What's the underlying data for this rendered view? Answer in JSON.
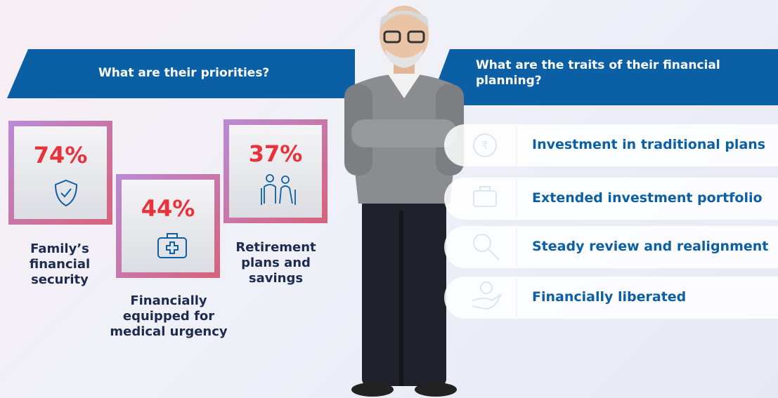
{
  "header": {
    "left_title": "What are their priorities?",
    "right_title": "What are the traits of their financial planning?"
  },
  "priorities": [
    {
      "percent": "74%",
      "label": "Family’s financial security"
    },
    {
      "percent": "44%",
      "label": "Financially equipped for medical urgency"
    },
    {
      "percent": "37%",
      "label": "Retirement plans and savings"
    }
  ],
  "traits": [
    "Investment in traditional plans",
    "Extended investment portfolio",
    "Steady review and realignment",
    "Financially liberated"
  ]
}
